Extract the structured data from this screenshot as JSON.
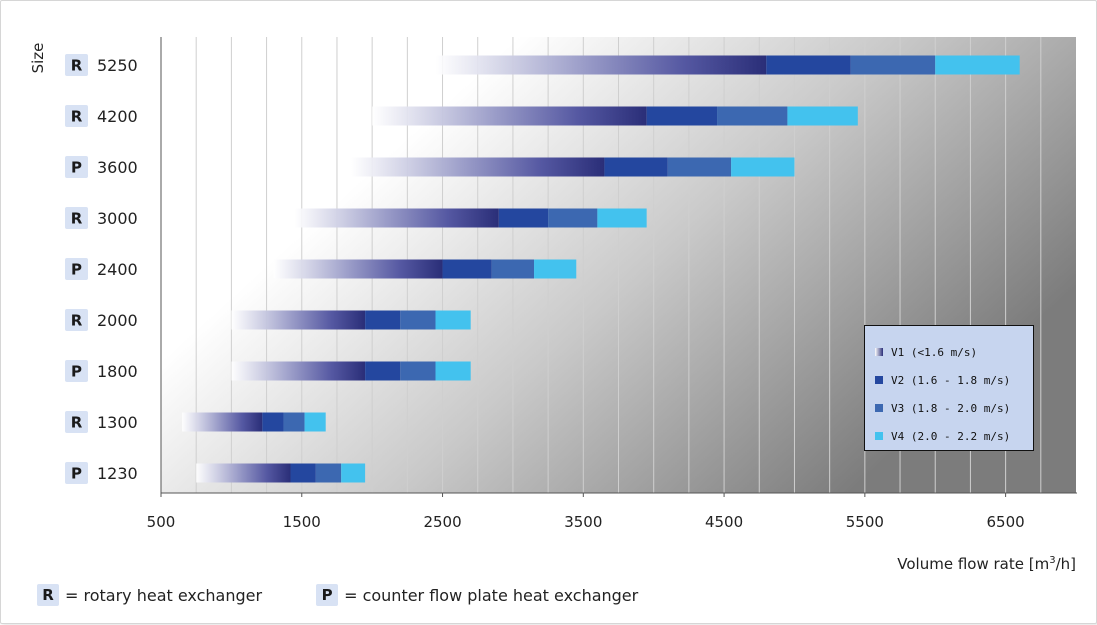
{
  "chart_data": {
    "type": "bar",
    "ylabel": "Size",
    "xlabel_main": "Volume flow rate [m",
    "xlabel_sup": "3",
    "xlabel_tail": "/h]",
    "xticks": [
      500,
      1500,
      2500,
      3500,
      4500,
      5500,
      6500
    ],
    "xlim": [
      500,
      7000
    ],
    "grid": true,
    "legend_position": "right",
    "units": [
      {
        "type": "R",
        "size": "5250",
        "v1": [
          2450,
          4800
        ],
        "v2": [
          4800,
          5400
        ],
        "v3": [
          5400,
          6000
        ],
        "v4": [
          6000,
          6600
        ]
      },
      {
        "type": "R",
        "size": "4200",
        "v1": [
          2000,
          3950
        ],
        "v2": [
          3950,
          4450
        ],
        "v3": [
          4450,
          4950
        ],
        "v4": [
          4950,
          5450
        ]
      },
      {
        "type": "P",
        "size": "3600",
        "v1": [
          1850,
          3650
        ],
        "v2": [
          3650,
          4100
        ],
        "v3": [
          4100,
          4550
        ],
        "v4": [
          4550,
          5000
        ]
      },
      {
        "type": "R",
        "size": "3000",
        "v1": [
          1450,
          2900
        ],
        "v2": [
          2900,
          3250
        ],
        "v3": [
          3250,
          3600
        ],
        "v4": [
          3600,
          3950
        ]
      },
      {
        "type": "P",
        "size": "2400",
        "v1": [
          1300,
          2500
        ],
        "v2": [
          2500,
          2850
        ],
        "v3": [
          2850,
          3150
        ],
        "v4": [
          3150,
          3450
        ]
      },
      {
        "type": "R",
        "size": "2000",
        "v1": [
          1000,
          1950
        ],
        "v2": [
          1950,
          2200
        ],
        "v3": [
          2200,
          2450
        ],
        "v4": [
          2450,
          2700
        ]
      },
      {
        "type": "P",
        "size": "1800",
        "v1": [
          1000,
          1950
        ],
        "v2": [
          1950,
          2200
        ],
        "v3": [
          2200,
          2450
        ],
        "v4": [
          2450,
          2700
        ]
      },
      {
        "type": "R",
        "size": "1300",
        "v1": [
          650,
          1220
        ],
        "v2": [
          1220,
          1370
        ],
        "v3": [
          1370,
          1520
        ],
        "v4": [
          1520,
          1670
        ]
      },
      {
        "type": "P",
        "size": "1230",
        "v1": [
          750,
          1420
        ],
        "v2": [
          1420,
          1600
        ],
        "v3": [
          1600,
          1780
        ],
        "v4": [
          1780,
          1950
        ]
      }
    ],
    "legend": [
      {
        "key": "v1",
        "label": "V1 (<1.6 m/s)"
      },
      {
        "key": "v2",
        "label": "V2 (1.6 - 1.8 m/s)"
      },
      {
        "key": "v3",
        "label": "V3 (1.8 - 2.0 m/s)"
      },
      {
        "key": "v4",
        "label": "V4 (2.0 - 2.2 m/s)"
      }
    ],
    "colors": {
      "v1_start": "#ffffff",
      "v1_end": "#2a2e78",
      "v2": "#24479f",
      "v3": "#3c68b1",
      "v4": "#43c2ee",
      "badge": "#d8e2f4",
      "grid": "#cfcfcf",
      "background_dark": "#7c7c7c"
    }
  },
  "footer": {
    "r_badge": "R",
    "r_text": "= rotary heat exchanger",
    "p_badge": "P",
    "p_text": "= counter flow plate heat exchanger"
  }
}
